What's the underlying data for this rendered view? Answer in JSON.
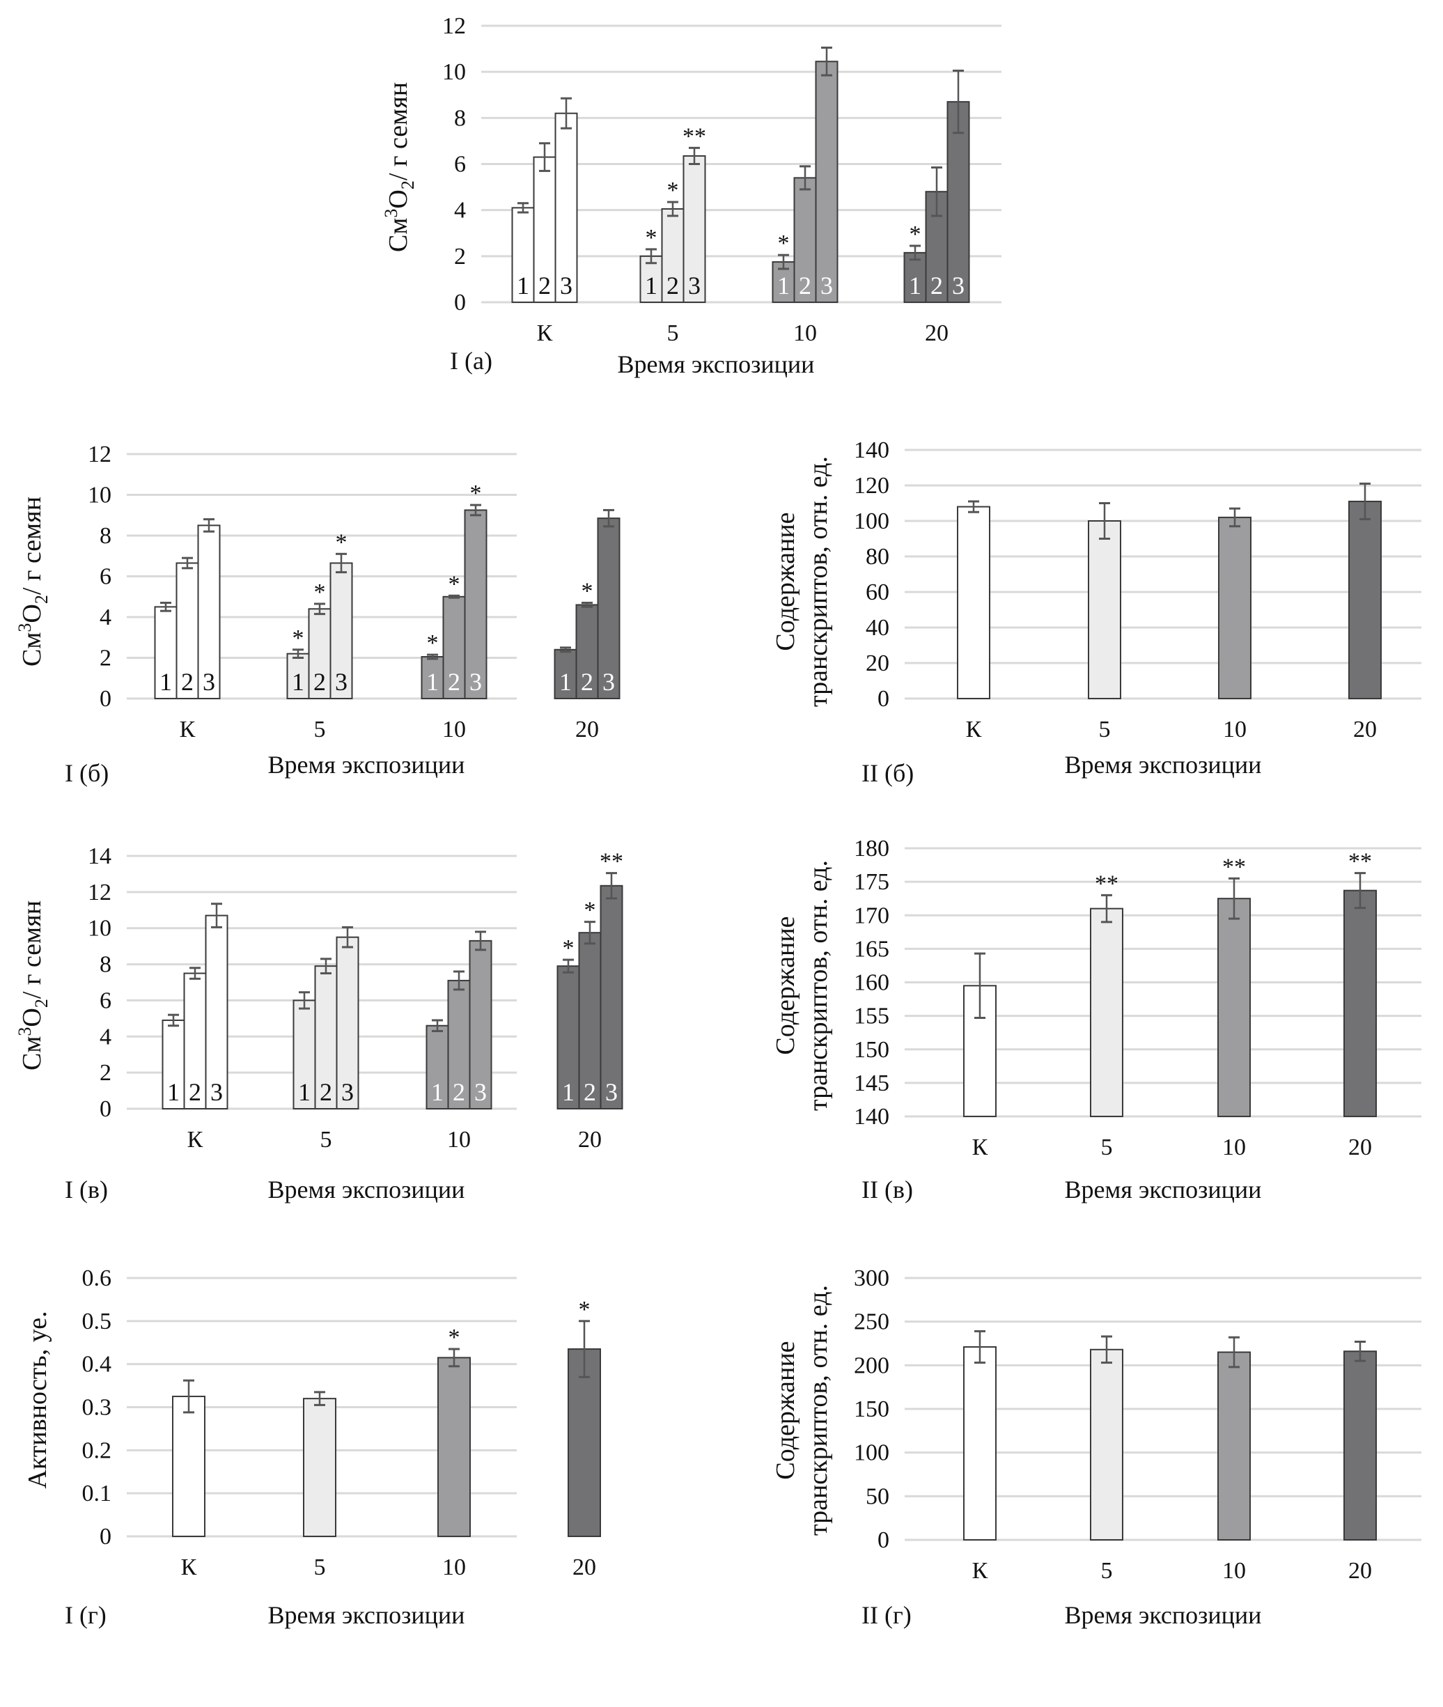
{
  "colors": {
    "c0": "#ffffff",
    "c1": "#ececec",
    "c2": "#9d9d9f",
    "c3": "#727274",
    "bar_stroke": "#3a3a3a",
    "grid": "#d9d9d9",
    "err": "#555555"
  },
  "series_labels": [
    "1",
    "2",
    "3"
  ],
  "chart_data": [
    {
      "id": "I(a)",
      "type": "bar",
      "panel_label": "I (а)",
      "xlabel": "Время экспозиции",
      "ylabel": {
        "base": "См",
        "sup": "3",
        "mid": "О",
        "sub": "2",
        "rest": "/ г семян"
      },
      "categories": [
        "К",
        "5",
        "10",
        "20"
      ],
      "ylim": [
        0,
        12
      ],
      "yticks": [
        0,
        2,
        4,
        6,
        8,
        10,
        12
      ],
      "grid": true,
      "grouped": true,
      "values": [
        [
          4.1,
          6.3,
          8.2
        ],
        [
          2.0,
          4.05,
          6.35
        ],
        [
          1.75,
          5.4,
          10.45
        ],
        [
          2.15,
          4.8,
          8.7
        ]
      ],
      "errors": [
        [
          0.2,
          0.6,
          0.65
        ],
        [
          0.3,
          0.3,
          0.35
        ],
        [
          0.3,
          0.5,
          0.6
        ],
        [
          0.3,
          1.05,
          1.35
        ]
      ],
      "marks": [
        [
          "",
          "",
          ""
        ],
        [
          "*",
          "*",
          "**"
        ],
        [
          "*",
          "",
          ""
        ],
        [
          "*",
          "",
          ""
        ]
      ]
    },
    {
      "id": "I(b)",
      "type": "bar",
      "panel_label": "I (б)",
      "xlabel": "Время экспозиции",
      "ylabel": {
        "base": "См",
        "sup": "3",
        "mid": "О",
        "sub": "2",
        "rest": "/ г семян"
      },
      "categories": [
        "К",
        "5",
        "10",
        "20"
      ],
      "ylim": [
        0,
        12
      ],
      "yticks": [
        0,
        2,
        4,
        6,
        8,
        10,
        12
      ],
      "grid": true,
      "grouped": true,
      "values": [
        [
          4.5,
          6.65,
          8.5
        ],
        [
          2.2,
          4.4,
          6.65
        ],
        [
          2.05,
          5.0,
          9.25
        ],
        [
          2.4,
          4.6,
          8.85
        ]
      ],
      "errors": [
        [
          0.2,
          0.25,
          0.3
        ],
        [
          0.2,
          0.25,
          0.45
        ],
        [
          0.1,
          0.05,
          0.25
        ],
        [
          0.1,
          0.1,
          0.4
        ]
      ],
      "marks": [
        [
          "",
          "",
          ""
        ],
        [
          "*",
          "*",
          "*"
        ],
        [
          "*",
          "*",
          "*"
        ],
        [
          "",
          "*",
          ""
        ]
      ]
    },
    {
      "id": "II(b)",
      "type": "bar",
      "panel_label": "II (б)",
      "xlabel": "Время экспозиции",
      "ylabel_lines": [
        "Содержание",
        "транскриптов, отн. ед."
      ],
      "categories": [
        "К",
        "5",
        "10",
        "20"
      ],
      "ylim": [
        0,
        140
      ],
      "yticks": [
        0,
        20,
        40,
        60,
        80,
        100,
        120,
        140
      ],
      "grid": true,
      "grouped": false,
      "values": [
        108,
        100,
        102,
        111
      ],
      "errors": [
        3,
        10,
        5,
        10
      ],
      "marks": [
        "",
        "",
        "",
        ""
      ]
    },
    {
      "id": "I(v)",
      "type": "bar",
      "panel_label": "I (в)",
      "xlabel": "Время экспозиции",
      "ylabel": {
        "base": "См",
        "sup": "3",
        "mid": "О",
        "sub": "2",
        "rest": "/ г семян"
      },
      "categories": [
        "К",
        "5",
        "10",
        "20"
      ],
      "ylim": [
        0,
        14
      ],
      "yticks": [
        0,
        2,
        4,
        6,
        8,
        10,
        12,
        14
      ],
      "grid": true,
      "grouped": true,
      "values": [
        [
          4.9,
          7.5,
          10.7
        ],
        [
          6.0,
          7.9,
          9.5
        ],
        [
          4.6,
          7.1,
          9.3
        ],
        [
          7.9,
          9.75,
          12.35
        ]
      ],
      "errors": [
        [
          0.3,
          0.3,
          0.65
        ],
        [
          0.45,
          0.4,
          0.55
        ],
        [
          0.3,
          0.5,
          0.5
        ],
        [
          0.35,
          0.6,
          0.7
        ]
      ],
      "marks": [
        [
          "",
          "",
          ""
        ],
        [
          "",
          "",
          ""
        ],
        [
          "",
          "",
          ""
        ],
        [
          "*",
          "*",
          "**"
        ]
      ]
    },
    {
      "id": "II(v)",
      "type": "bar",
      "panel_label": "II (в)",
      "xlabel": "Время экспозиции",
      "ylabel_lines": [
        "Содержание",
        "транскриптов, отн. ед."
      ],
      "categories": [
        "К",
        "5",
        "10",
        "20"
      ],
      "ylim": [
        140,
        180
      ],
      "yticks": [
        140,
        145,
        150,
        155,
        160,
        165,
        170,
        175,
        180
      ],
      "grid": true,
      "grouped": false,
      "values": [
        159.5,
        171,
        172.5,
        173.7
      ],
      "errors": [
        4.8,
        2,
        3,
        2.6
      ],
      "marks": [
        "",
        "**",
        "**",
        "**"
      ]
    },
    {
      "id": "I(g)",
      "type": "bar",
      "panel_label": "I (г)",
      "xlabel": "Время экспозиции",
      "ylabel_lines": [
        "Активность, уе."
      ],
      "categories": [
        "К",
        "5",
        "10",
        "20"
      ],
      "ylim": [
        0,
        0.6
      ],
      "yticks": [
        "0",
        "0.1",
        "0.2",
        "0.3",
        "0.4",
        "0.5",
        "0.6"
      ],
      "grid": true,
      "grouped": false,
      "values": [
        0.325,
        0.32,
        0.415,
        0.435
      ],
      "errors": [
        0.037,
        0.015,
        0.02,
        0.065
      ],
      "marks": [
        "",
        "",
        "*",
        "*"
      ]
    },
    {
      "id": "II(g)",
      "type": "bar",
      "panel_label": "II (г)",
      "xlabel": "Время экспозиции",
      "ylabel_lines": [
        "Содержание",
        "транскриптов, отн. ед."
      ],
      "categories": [
        "К",
        "5",
        "10",
        "20"
      ],
      "ylim": [
        0,
        300
      ],
      "yticks": [
        0,
        50,
        100,
        150,
        200,
        250,
        300
      ],
      "grid": true,
      "grouped": false,
      "values": [
        221,
        218,
        215,
        216
      ],
      "errors": [
        18,
        15,
        17,
        11
      ],
      "marks": [
        "",
        "",
        "",
        ""
      ]
    }
  ]
}
